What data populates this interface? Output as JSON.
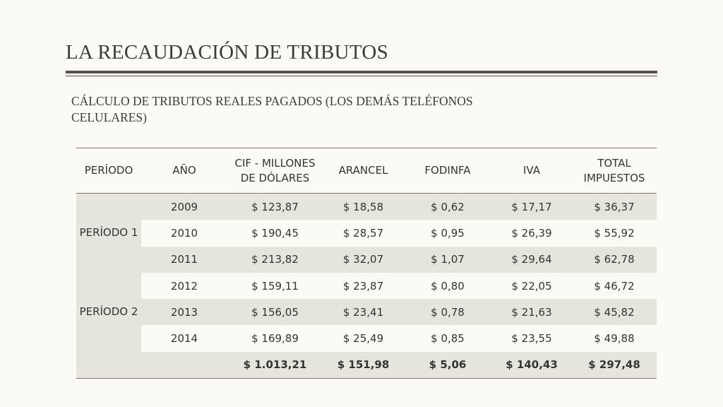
{
  "title": "LA RECAUDACIÓN DE TRIBUTOS",
  "subtitle": "CÁLCULO DE TRIBUTOS REALES PAGADOS (LOS DEMÁS TELÉFONOS CELULARES)",
  "table": {
    "headers": [
      "PERÍODO",
      "AÑO",
      "CIF - MILLONES DE DÓLARES",
      "ARANCEL",
      "FODINFA",
      "IVA",
      "TOTAL IMPUESTOS"
    ],
    "periods": [
      "PERÍODO 1",
      "PERÍODO 2"
    ],
    "rows": [
      [
        "2009",
        "$ 123,87",
        "$ 18,58",
        "$ 0,62",
        "$ 17,17",
        "$ 36,37"
      ],
      [
        "2010",
        "$ 190,45",
        "$ 28,57",
        "$ 0,95",
        "$ 26,39",
        "$ 55,92"
      ],
      [
        "2011",
        "$ 213,82",
        "$ 32,07",
        "$ 1,07",
        "$ 29,64",
        "$ 62,78"
      ],
      [
        "2012",
        "$ 159,11",
        "$ 23,87",
        "$ 0,80",
        "$ 22,05",
        "$ 46,72"
      ],
      [
        "2013",
        "$ 156,05",
        "$ 23,41",
        "$ 0,78",
        "$ 21,63",
        "$ 45,82"
      ],
      [
        "2014",
        "$ 169,89",
        "$ 25,49",
        "$ 0,85",
        "$ 23,55",
        "$ 49,88"
      ]
    ],
    "totals": [
      "$ 1.013,21",
      "$ 151,98",
      "$ 5,06",
      "$ 140,43",
      "$ 297,48"
    ]
  },
  "colors": {
    "shade": "#e6e5dd",
    "background": "#fbfaf5",
    "rule": "#57524c"
  }
}
